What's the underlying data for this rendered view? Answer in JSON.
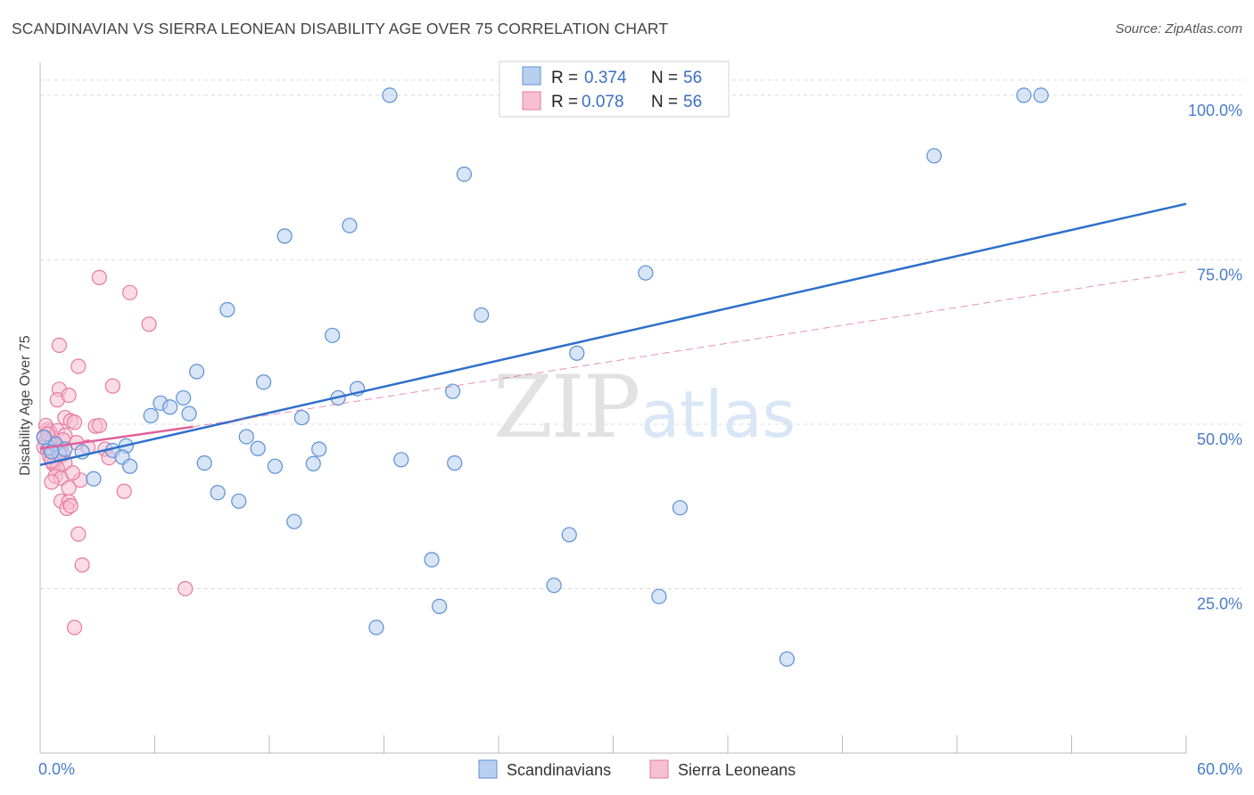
{
  "header": {
    "title": "SCANDINAVIAN VS SIERRA LEONEAN DISABILITY AGE OVER 75 CORRELATION CHART",
    "source": "Source: ZipAtlas.com"
  },
  "colors": {
    "scandinavian_fill": "#b8d0f0",
    "scandinavian_stroke": "#5b8fd6",
    "scandinavian_line": "#2f6fcc",
    "sierra_fill": "#f7bfd2",
    "sierra_stroke": "#e57aa0",
    "sierra_line": "#e0609a",
    "grid": "#d9d9d9",
    "axis_labels": "#4a7cc9"
  },
  "legend": {
    "rows": [
      {
        "r_label": "R = ",
        "r_value": "0.374",
        "n_label": "N = ",
        "n_value": "56"
      },
      {
        "r_label": "R = ",
        "r_value": "0.078",
        "n_label": "N = ",
        "n_value": "56"
      }
    ]
  },
  "watermark": {
    "zip": "ZIP",
    "atlas": "atlas"
  },
  "chart_data": {
    "type": "scatter",
    "title": "SCANDINAVIAN VS SIERRA LEONEAN DISABILITY AGE OVER 75 CORRELATION CHART",
    "xlabel": "",
    "ylabel": "Disability Age Over 75",
    "xlim": [
      0,
      60
    ],
    "ylim": [
      0,
      105
    ],
    "x_ticks": [
      "0.0%",
      "60.0%"
    ],
    "y_ticks": [
      {
        "value": 25,
        "label": "25.0%"
      },
      {
        "value": 50,
        "label": "50.0%"
      },
      {
        "value": 75,
        "label": "75.0%"
      },
      {
        "value": 100,
        "label": "100.0%"
      }
    ],
    "grid": "horizontal dashed",
    "legend_position": "top-center",
    "series": [
      {
        "name": "Scandinavians",
        "r": 0.374,
        "n": 56,
        "trend": {
          "x": [
            0,
            60
          ],
          "y": [
            43.8,
            83.5
          ],
          "style": "solid"
        },
        "points": [
          [
            18.3,
            100
          ],
          [
            27.5,
            100
          ],
          [
            30.8,
            100
          ],
          [
            51.5,
            100
          ],
          [
            52.4,
            100
          ],
          [
            22.2,
            88
          ],
          [
            46.8,
            90.8
          ],
          [
            12.8,
            78.6
          ],
          [
            16.2,
            80.2
          ],
          [
            31.7,
            73
          ],
          [
            9.8,
            67.4
          ],
          [
            23.1,
            66.6
          ],
          [
            15.3,
            63.5
          ],
          [
            28.1,
            60.8
          ],
          [
            8.2,
            58
          ],
          [
            11.7,
            56.4
          ],
          [
            16.6,
            55.4
          ],
          [
            15.6,
            54
          ],
          [
            21.6,
            55
          ],
          [
            6.3,
            53.2
          ],
          [
            7.5,
            54
          ],
          [
            6.8,
            52.6
          ],
          [
            5.8,
            51.3
          ],
          [
            7.8,
            51.6
          ],
          [
            13.7,
            51
          ],
          [
            10.8,
            48.1
          ],
          [
            11.4,
            46.3
          ],
          [
            14.6,
            46.2
          ],
          [
            0.5,
            46.4
          ],
          [
            1,
            45.5
          ],
          [
            2.2,
            45.8
          ],
          [
            3.8,
            46
          ],
          [
            4.5,
            46.7
          ],
          [
            4.3,
            45
          ],
          [
            4.7,
            43.6
          ],
          [
            2.8,
            41.7
          ],
          [
            8.6,
            44.1
          ],
          [
            12.3,
            43.6
          ],
          [
            14.3,
            44
          ],
          [
            18.9,
            44.6
          ],
          [
            21.7,
            44.1
          ],
          [
            0.8,
            47
          ],
          [
            1.3,
            46.2
          ],
          [
            9.3,
            39.6
          ],
          [
            10.4,
            38.3
          ],
          [
            13.3,
            35.2
          ],
          [
            33.5,
            37.3
          ],
          [
            27.7,
            33.2
          ],
          [
            20.5,
            29.4
          ],
          [
            26.9,
            25.5
          ],
          [
            32.4,
            23.8
          ],
          [
            20.9,
            22.3
          ],
          [
            17.6,
            19.1
          ],
          [
            39.1,
            14.3
          ],
          [
            0.2,
            48
          ],
          [
            0.6,
            45.8
          ]
        ]
      },
      {
        "name": "Sierra Leoneans",
        "r": 0.078,
        "n": 56,
        "trend": {
          "x": [
            0,
            8
          ],
          "y": [
            46.3,
            49.6
          ],
          "style": "solid"
        },
        "trend_extended": {
          "x": [
            8,
            60
          ],
          "y": [
            49.6,
            73.2
          ],
          "style": "dashed"
        },
        "points": [
          [
            3.1,
            72.3
          ],
          [
            4.7,
            70
          ],
          [
            5.7,
            65.2
          ],
          [
            1,
            62
          ],
          [
            2,
            58.8
          ],
          [
            3.8,
            55.8
          ],
          [
            1,
            55.3
          ],
          [
            0.9,
            53.7
          ],
          [
            1.5,
            54.4
          ],
          [
            1.3,
            51
          ],
          [
            1.6,
            50.5
          ],
          [
            1.8,
            50.3
          ],
          [
            2.9,
            49.7
          ],
          [
            3.1,
            49.8
          ],
          [
            0.4,
            49.2
          ],
          [
            0.5,
            48.9
          ],
          [
            0.2,
            48.1
          ],
          [
            0.7,
            47.9
          ],
          [
            0.3,
            47.4
          ],
          [
            0.6,
            47.2
          ],
          [
            0.8,
            46.8
          ],
          [
            0.2,
            46.5
          ],
          [
            0.4,
            46
          ],
          [
            0.7,
            45.8
          ],
          [
            1.1,
            46.3
          ],
          [
            1.2,
            45.4
          ],
          [
            2.5,
            46.5
          ],
          [
            3.4,
            46.2
          ],
          [
            0.5,
            45.1
          ],
          [
            0.8,
            44.6
          ],
          [
            1.3,
            44.1
          ],
          [
            0.7,
            43.9
          ],
          [
            0.9,
            43.3
          ],
          [
            3.6,
            44.9
          ],
          [
            0.8,
            42.1
          ],
          [
            1.1,
            41.8
          ],
          [
            0.6,
            41.2
          ],
          [
            2.1,
            41.5
          ],
          [
            1.5,
            40.3
          ],
          [
            4.4,
            39.8
          ],
          [
            1.1,
            38.3
          ],
          [
            1.5,
            38.2
          ],
          [
            1.4,
            37.2
          ],
          [
            1.6,
            37.6
          ],
          [
            2,
            33.3
          ],
          [
            2.2,
            28.6
          ],
          [
            7.6,
            25
          ],
          [
            1.8,
            19.1
          ],
          [
            0.3,
            49.8
          ],
          [
            0.9,
            49
          ],
          [
            1.3,
            48.3
          ],
          [
            1.9,
            47.2
          ],
          [
            0.6,
            44.4
          ],
          [
            1.7,
            42.6
          ],
          [
            0.4,
            48.5
          ],
          [
            1.2,
            47.6
          ]
        ]
      }
    ]
  }
}
